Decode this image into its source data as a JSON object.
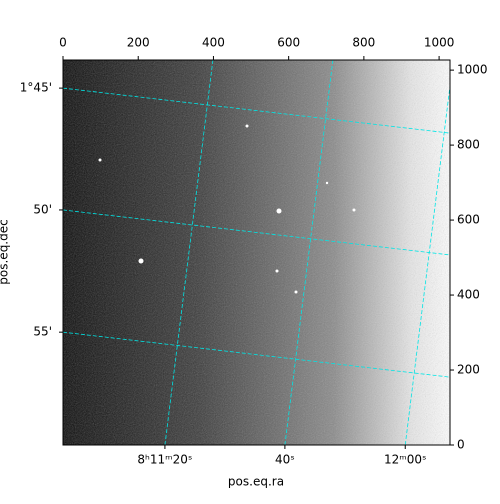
{
  "chart_data": {
    "type": "image",
    "xlabel": "pos.eq.ra",
    "ylabel": "pos.eq.dec",
    "xlim": [
      0,
      1029
    ],
    "ylim": [
      0,
      1027
    ],
    "xticks": [
      0,
      200,
      400,
      600,
      800,
      1000
    ],
    "yticks": [
      0,
      200,
      400,
      600,
      800,
      1000
    ],
    "wcs_xticks": [
      {
        "value": 271,
        "label": "8ʰ11ᵐ20ˢ"
      },
      {
        "value": 590,
        "label": "40ˢ"
      },
      {
        "value": 910,
        "label": "12ᵐ00ˢ"
      }
    ],
    "wcs_yticks": [
      {
        "value": 952,
        "label": "1°45'"
      },
      {
        "value": 627,
        "label": "50'"
      },
      {
        "value": 301,
        "label": "55'"
      }
    ],
    "grid": true,
    "grid_color": "#00e5e5"
  }
}
